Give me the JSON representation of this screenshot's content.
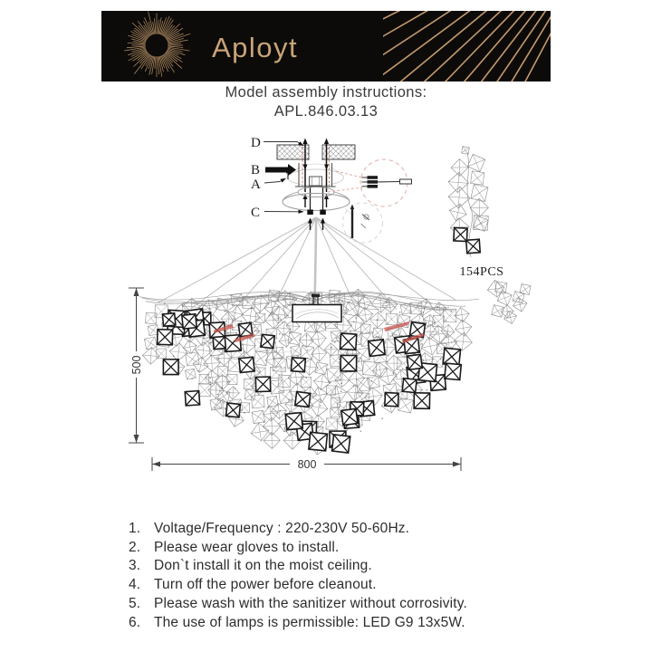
{
  "header": {
    "brand": "Aployt",
    "title": "Model assembly instructions:",
    "model": "APL.846.03.13"
  },
  "diagram": {
    "part_labels": {
      "d": "D",
      "b": "B",
      "a": "A",
      "c": "C"
    },
    "pcs_label": "154PCS",
    "dim_height": "500",
    "dim_width": "800",
    "colors": {
      "banner_bg": "#0c0b09",
      "gold": "#c49a6c",
      "accent_red": "#c4554d",
      "red_dash": "#dfa7a2",
      "line_dark": "#1a1a1a",
      "line_mid": "#8c8c8c",
      "line_light": "#b8b8b8"
    }
  },
  "instructions": {
    "items": [
      {
        "num": "1.",
        "text": "Voltage/Frequency : 220-230V 50-60Hz."
      },
      {
        "num": "2.",
        "text": "Please wear gloves to install."
      },
      {
        "num": "3.",
        "text": "Don`t install it on the moist ceiling."
      },
      {
        "num": "4.",
        "text": "Turn off the power before cleanout."
      },
      {
        "num": "5.",
        "text": "Please wash with the sanitizer without corrosivity."
      },
      {
        "num": "6.",
        "text": "The use of lamps is permissible: LED G9 13x5W."
      }
    ]
  }
}
